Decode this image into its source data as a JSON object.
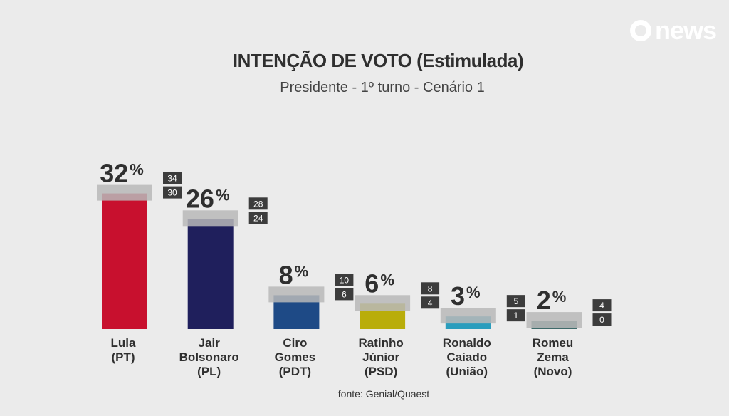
{
  "brand": {
    "logo_text": "news"
  },
  "chart_data": {
    "type": "bar",
    "title": "INTENÇÃO DE VOTO (Estimulada)",
    "subtitle": "Presidente - 1º turno - Cenário 1",
    "source": "fonte: Genial/Quaest",
    "unit": "%",
    "categories": [
      [
        "Lula",
        "(PT)"
      ],
      [
        "Jair",
        "Bolsonaro",
        "(PL)"
      ],
      [
        "Ciro",
        "Gomes",
        "(PDT)"
      ],
      [
        "Ratinho",
        "Júnior",
        "(PSD)"
      ],
      [
        "Ronaldo",
        "Caiado",
        "(União)"
      ],
      [
        "Romeu",
        "Zema",
        "(Novo)"
      ]
    ],
    "values": [
      32,
      26,
      8,
      6,
      3,
      2
    ],
    "range_high": [
      34,
      28,
      10,
      8,
      5,
      4
    ],
    "range_low": [
      30,
      24,
      6,
      4,
      1,
      0
    ],
    "colors": [
      "#c8102e",
      "#1f1f5c",
      "#1e4a86",
      "#b9ad0a",
      "#2a9dbd",
      "#3f6b6b"
    ]
  }
}
